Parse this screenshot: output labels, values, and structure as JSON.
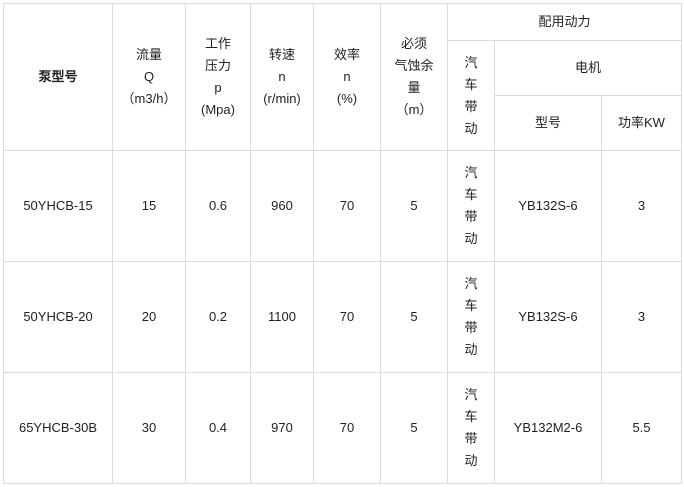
{
  "header": {
    "model": "泵型号",
    "flow": [
      "流量",
      "Q",
      "（m3/h）"
    ],
    "pressure": [
      "工作",
      "压力",
      "p",
      "(Mpa)"
    ],
    "speed": [
      "转速",
      "n",
      "(r/min)"
    ],
    "efficiency": [
      "效率",
      "n",
      "(%)"
    ],
    "npsh": [
      "必须",
      "气蚀余",
      "量",
      "（m）"
    ],
    "power": "配用动力",
    "vehicle": [
      "汽",
      "车",
      "带",
      "动"
    ],
    "motor": "电机",
    "motor_model": "型号",
    "motor_power": "功率KW"
  },
  "rows": [
    {
      "model": "50YHCB-15",
      "flow": "15",
      "pressure": "0.6",
      "speed": "960",
      "efficiency": "70",
      "npsh": "5",
      "vehicle": [
        "汽",
        "车",
        "带",
        "动"
      ],
      "motor_model": "YB132S-6",
      "motor_power": "3"
    },
    {
      "model": "50YHCB-20",
      "flow": "20",
      "pressure": "0.2",
      "speed": "1100",
      "efficiency": "70",
      "npsh": "5",
      "vehicle": [
        "汽",
        "车",
        "带",
        "动"
      ],
      "motor_model": "YB132S-6",
      "motor_power": "3"
    },
    {
      "model": "65YHCB-30B",
      "flow": "30",
      "pressure": "0.4",
      "speed": "970",
      "efficiency": "70",
      "npsh": "5",
      "vehicle": [
        "汽",
        "车",
        "带",
        "动"
      ],
      "motor_model": "YB132M2-6",
      "motor_power": "5.5"
    }
  ]
}
